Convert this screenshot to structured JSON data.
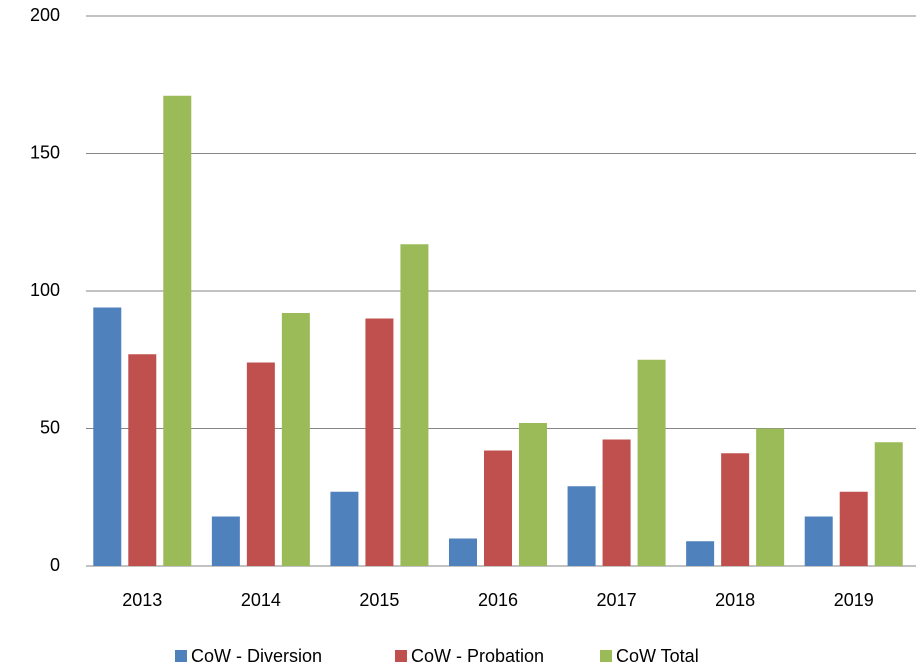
{
  "chart_data": {
    "type": "bar",
    "categories": [
      "2013",
      "2014",
      "2015",
      "2016",
      "2017",
      "2018",
      "2019"
    ],
    "series": [
      {
        "name": "CoW - Diversion",
        "color": "#4f81bd",
        "values": [
          94,
          18,
          27,
          10,
          29,
          9,
          18
        ]
      },
      {
        "name": "CoW - Probation",
        "color": "#c0504d",
        "values": [
          77,
          74,
          90,
          42,
          46,
          41,
          27
        ]
      },
      {
        "name": "CoW Total",
        "color": "#9bbb59",
        "values": [
          171,
          92,
          117,
          52,
          75,
          50,
          45
        ]
      }
    ],
    "ylim": [
      0,
      200
    ],
    "yticks": [
      0,
      50,
      100,
      150,
      200
    ],
    "grid": true,
    "legend": "bottom"
  }
}
